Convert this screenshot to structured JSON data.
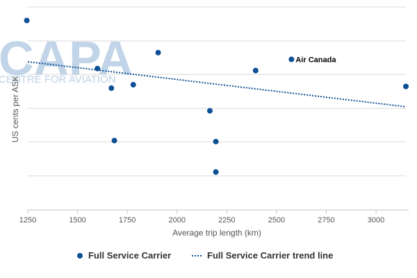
{
  "watermark": {
    "logo": "CAPA",
    "subtitle": "CENTRE FOR AVIATION"
  },
  "colors": {
    "series": "#0b4f94",
    "grid": "#d9d9d9",
    "axis": "#c0c0c0",
    "watermark": "#b7cde4"
  },
  "chart_data": {
    "type": "scatter",
    "title": "",
    "xlabel": "Average trip length (km)",
    "ylabel": "US cents per ASK",
    "xlim": [
      1250,
      3150
    ],
    "xticks": [
      1250,
      1500,
      1750,
      2000,
      2250,
      2500,
      2750,
      3000
    ],
    "yticks_shown": false,
    "grid": "horizontal",
    "legend_position": "bottom",
    "series": [
      {
        "name": "Full Service Carrier",
        "points": [
          {
            "x": 1245,
            "y": 6.6
          },
          {
            "x": 1600,
            "y": 5.18
          },
          {
            "x": 1670,
            "y": 4.6
          },
          {
            "x": 1685,
            "y": 3.05
          },
          {
            "x": 1780,
            "y": 4.7
          },
          {
            "x": 1905,
            "y": 5.65
          },
          {
            "x": 2165,
            "y": 3.93
          },
          {
            "x": 2195,
            "y": 3.02
          },
          {
            "x": 2195,
            "y": 2.12
          },
          {
            "x": 2395,
            "y": 5.12
          },
          {
            "x": 2575,
            "y": 5.45
          },
          {
            "x": 3150,
            "y": 4.65
          }
        ]
      }
    ],
    "trend_line": {
      "name": "Full Service Carrier trend line",
      "start": {
        "x": 1250,
        "y": 5.38
      },
      "end": {
        "x": 3150,
        "y": 4.05
      }
    },
    "annotations": [
      {
        "text": "Air Canada",
        "x": 2575,
        "y": 5.45
      }
    ]
  }
}
